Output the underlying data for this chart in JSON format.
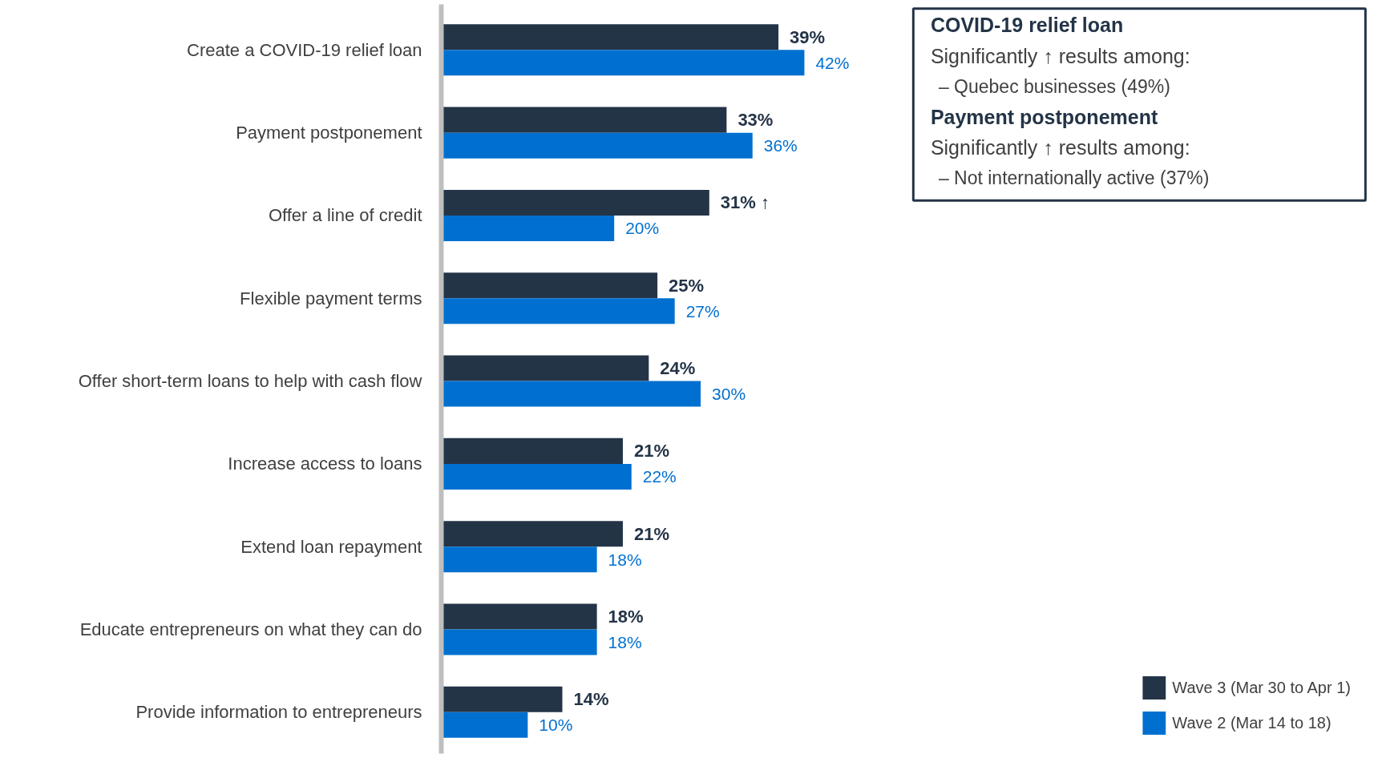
{
  "chart_data": {
    "type": "bar",
    "orientation": "horizontal",
    "categories": [
      "Create a COVID-19 relief loan",
      "Payment postponement",
      "Offer a line of credit",
      "Flexible payment terms",
      "Offer short-term loans to help with cash flow",
      "Increase access to loans",
      "Extend loan repayment",
      "Educate entrepreneurs on what they can do",
      "Provide information to entrepreneurs"
    ],
    "series": [
      {
        "name": "Wave 3 (Mar 30 to Apr 1)",
        "color": "#243447",
        "values": [
          39,
          33,
          31,
          25,
          24,
          21,
          21,
          18,
          14
        ],
        "value_labels": [
          "39%",
          "33%",
          "31% ↑",
          "25%",
          "24%",
          "21%",
          "21%",
          "18%",
          "14%"
        ]
      },
      {
        "name": "Wave 2 (Mar 14 to 18)",
        "color": "#0070d0",
        "values": [
          42,
          36,
          20,
          27,
          30,
          22,
          18,
          18,
          10
        ],
        "value_labels": [
          "42%",
          "36%",
          "20%",
          "27%",
          "30%",
          "22%",
          "18%",
          "18%",
          "10%"
        ]
      }
    ],
    "annotations": [
      "COVID-19 relief loan",
      "Significantly ↑ results among:",
      "–    Quebec businesses (49%)",
      "Payment postponement",
      "Significantly ↑ results among:",
      "–    Not internationally active (37%)"
    ],
    "legend": "bottom right",
    "grid": false
  }
}
